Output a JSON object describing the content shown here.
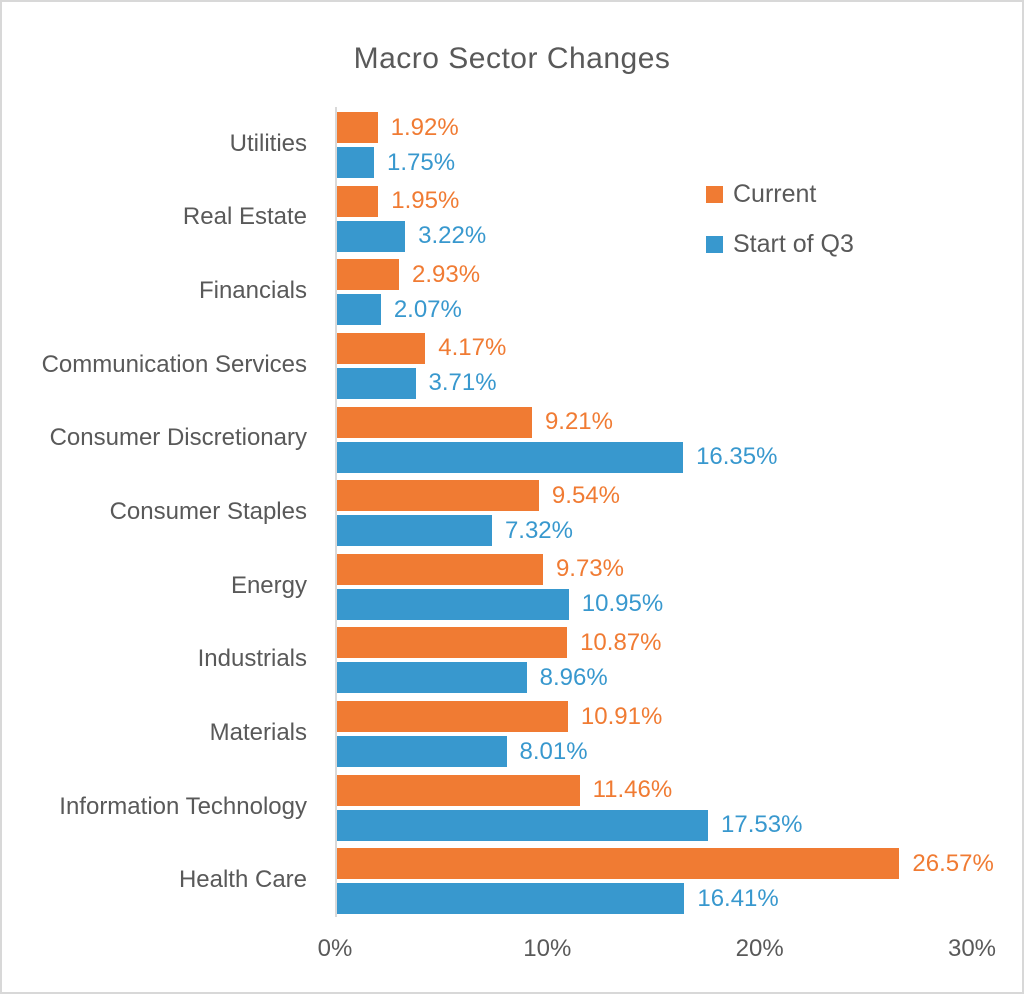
{
  "frame": {
    "background": "#FFFFFF",
    "border_color": "#D8D8D8"
  },
  "chart_data": {
    "type": "bar",
    "orientation": "horizontal",
    "title": "Macro Sector Changes",
    "title_color": "#595959",
    "text_color": "#595959",
    "axis_line_color": "#D9D9D9",
    "grid": false,
    "legend_position": "top-right",
    "xlabel": "",
    "ylabel": "",
    "x_axis": {
      "min": 0,
      "max": 30,
      "ticks": [
        "0%",
        "10%",
        "20%",
        "30%"
      ]
    },
    "categories": [
      "Utilities",
      "Real Estate",
      "Financials",
      "Communication Services",
      "Consumer Discretionary",
      "Consumer Staples",
      "Energy",
      "Industrials",
      "Materials",
      "Information Technology",
      "Health Care"
    ],
    "series": [
      {
        "name": "Current",
        "color": "#F07B33",
        "values": [
          1.92,
          1.95,
          2.93,
          4.17,
          9.21,
          9.54,
          9.73,
          10.87,
          10.91,
          11.46,
          26.57
        ],
        "labels": [
          "1.92%",
          "1.95%",
          "2.93%",
          "4.17%",
          "9.21%",
          "9.54%",
          "9.73%",
          "10.87%",
          "10.91%",
          "11.46%",
          "26.57%"
        ]
      },
      {
        "name": "Start of Q3",
        "color": "#3898CE",
        "values": [
          1.75,
          3.22,
          2.07,
          3.71,
          16.35,
          7.32,
          10.95,
          8.96,
          8.01,
          17.53,
          16.41
        ],
        "labels": [
          "1.75%",
          "3.22%",
          "2.07%",
          "3.71%",
          "16.35%",
          "7.32%",
          "10.95%",
          "8.96%",
          "8.01%",
          "17.53%",
          "16.41%"
        ]
      }
    ]
  }
}
